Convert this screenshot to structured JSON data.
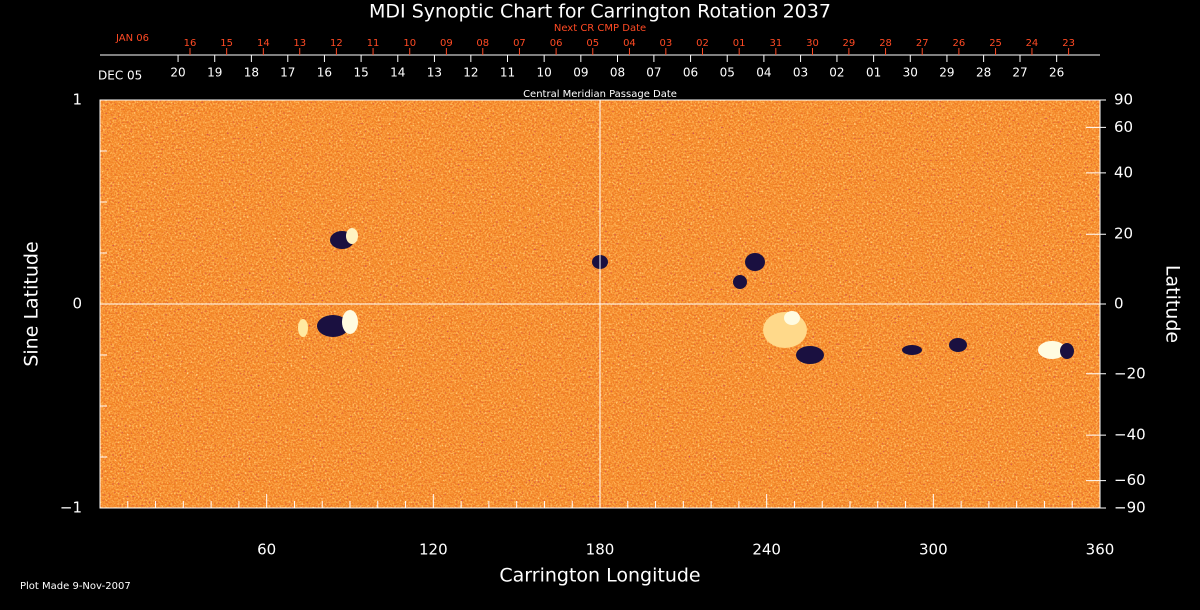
{
  "chart_data": {
    "type": "heatmap",
    "title": "MDI Synoptic Chart for Carrington Rotation 2037",
    "xlabel": "Carrington Longitude",
    "ylabel": "Sine Latitude",
    "y2label": "Latitude",
    "xlim": [
      0,
      360
    ],
    "xticks": [
      60,
      120,
      180,
      240,
      300,
      360
    ],
    "xminorticks": [
      10,
      20,
      30,
      40,
      50,
      70,
      80,
      90,
      100,
      110,
      130,
      140,
      150,
      160,
      170,
      190,
      200,
      210,
      220,
      230,
      250,
      260,
      270,
      280,
      290,
      310,
      320,
      330,
      340,
      350
    ],
    "ylim": [
      -1,
      1
    ],
    "yticks": [
      {
        "value": -1,
        "label": "−1"
      },
      0,
      1
    ],
    "yminorticks": [
      -0.75,
      -0.5,
      -0.25,
      0.25,
      0.5,
      0.75
    ],
    "y2lim": [
      -90,
      90
    ],
    "y2scale": "sine",
    "y2ticks": [
      {
        "value": -90,
        "label": "−90"
      },
      {
        "value": -60,
        "label": "−60"
      },
      {
        "value": -40,
        "label": "−40"
      },
      {
        "value": -20,
        "label": "−20"
      },
      0,
      20,
      40,
      60,
      90
    ],
    "crosshair": {
      "x": 180,
      "y": 0
    },
    "top_axes": [
      {
        "title": "Next CR CMP Date",
        "start_label": "JAN 06",
        "color": "#ff4a24",
        "ticks": [
          {
            "value": 32.4,
            "label": "16"
          },
          {
            "value": 45.6,
            "label": "15"
          },
          {
            "value": 58.8,
            "label": "14"
          },
          {
            "value": 71.9,
            "label": "13"
          },
          {
            "value": 85.1,
            "label": "12"
          },
          {
            "value": 98.3,
            "label": "11"
          },
          {
            "value": 111.5,
            "label": "10"
          },
          {
            "value": 124.7,
            "label": "09"
          },
          {
            "value": 137.8,
            "label": "08"
          },
          {
            "value": 151.0,
            "label": "07"
          },
          {
            "value": 164.2,
            "label": "06"
          },
          {
            "value": 177.4,
            "label": "05"
          },
          {
            "value": 190.6,
            "label": "04"
          },
          {
            "value": 203.7,
            "label": "03"
          },
          {
            "value": 216.9,
            "label": "02"
          },
          {
            "value": 230.1,
            "label": "01"
          },
          {
            "value": 243.3,
            "label": "31"
          },
          {
            "value": 256.5,
            "label": "30"
          },
          {
            "value": 269.6,
            "label": "29"
          },
          {
            "value": 282.8,
            "label": "28"
          },
          {
            "value": 296.0,
            "label": "27"
          },
          {
            "value": 309.2,
            "label": "26"
          },
          {
            "value": 322.4,
            "label": "25"
          },
          {
            "value": 335.5,
            "label": "24"
          },
          {
            "value": 348.7,
            "label": "23"
          }
        ]
      },
      {
        "title": "Central Meridian Passage Date",
        "start_label": "DEC 05",
        "color": "#ffffff",
        "ticks": [
          {
            "value": 28.1,
            "label": "20"
          },
          {
            "value": 41.3,
            "label": "19"
          },
          {
            "value": 54.5,
            "label": "18"
          },
          {
            "value": 67.6,
            "label": "17"
          },
          {
            "value": 80.8,
            "label": "16"
          },
          {
            "value": 94.0,
            "label": "15"
          },
          {
            "value": 107.2,
            "label": "14"
          },
          {
            "value": 120.4,
            "label": "13"
          },
          {
            "value": 133.5,
            "label": "12"
          },
          {
            "value": 146.7,
            "label": "11"
          },
          {
            "value": 159.9,
            "label": "10"
          },
          {
            "value": 173.1,
            "label": "09"
          },
          {
            "value": 186.3,
            "label": "08"
          },
          {
            "value": 199.4,
            "label": "07"
          },
          {
            "value": 212.6,
            "label": "06"
          },
          {
            "value": 225.8,
            "label": "05"
          },
          {
            "value": 239.0,
            "label": "04"
          },
          {
            "value": 252.2,
            "label": "03"
          },
          {
            "value": 265.3,
            "label": "02"
          },
          {
            "value": 278.5,
            "label": "01"
          },
          {
            "value": 291.7,
            "label": "30"
          },
          {
            "value": 304.9,
            "label": "29"
          },
          {
            "value": 318.1,
            "label": "28"
          },
          {
            "value": 331.2,
            "label": "27"
          },
          {
            "value": 344.4,
            "label": "26"
          }
        ]
      }
    ],
    "footnote": "Plot Made  9-Nov-2007"
  }
}
